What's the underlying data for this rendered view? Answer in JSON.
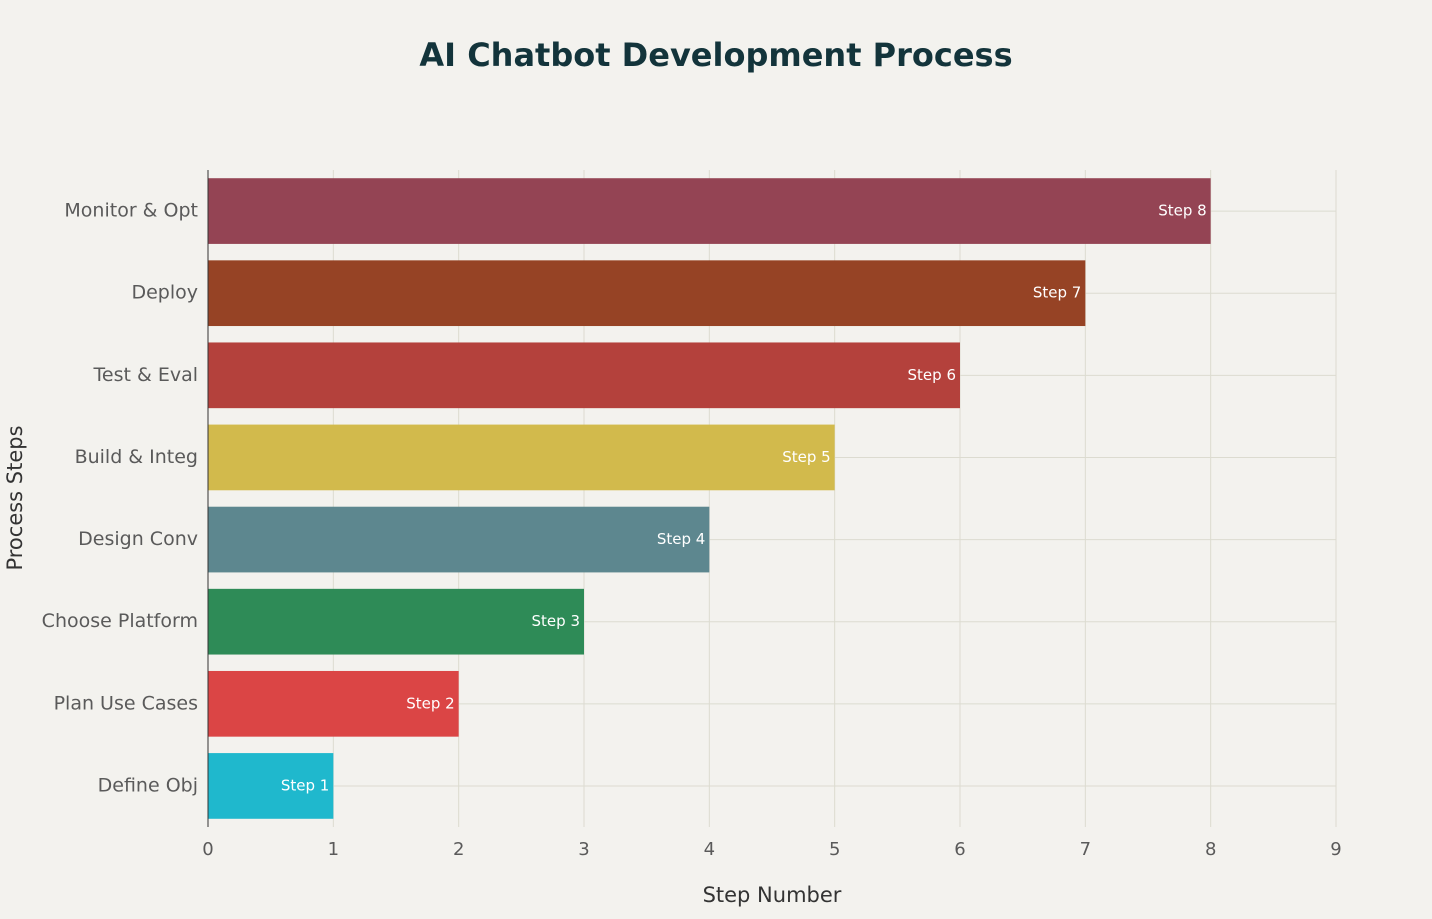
{
  "chart_data": {
    "type": "bar",
    "orientation": "horizontal",
    "title": "AI Chatbot Development Process",
    "x_label": "Step Number",
    "y_label": "Process Steps",
    "categories": [
      "Define Obj",
      "Plan Use Cases",
      "Choose Platform",
      "Design Conv",
      "Build & Integ",
      "Test & Eval",
      "Deploy",
      "Monitor & Opt"
    ],
    "values": [
      1,
      2,
      3,
      4,
      5,
      6,
      7,
      8
    ],
    "value_labels": [
      "Step 1",
      "Step 2",
      "Step 3",
      "Step 4",
      "Step 5",
      "Step 6",
      "Step 7",
      "Step 8"
    ],
    "colors": [
      "#1fb8cd",
      "#db4545",
      "#2e8b57",
      "#5d878f",
      "#d2ba4c",
      "#b4413c",
      "#964325",
      "#944454"
    ],
    "xlim": [
      0,
      9
    ],
    "xticks": [
      0,
      1,
      2,
      3,
      4,
      5,
      6,
      7,
      8,
      9
    ],
    "grid": true
  }
}
